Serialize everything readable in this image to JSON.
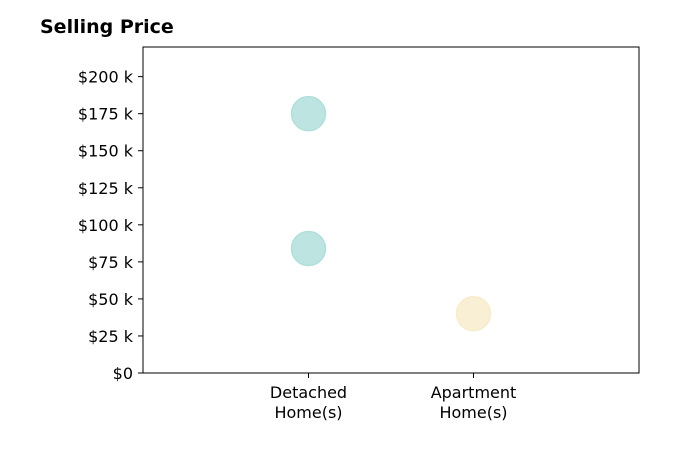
{
  "chart_data": {
    "type": "scatter",
    "title": "Selling Price",
    "xlabel": "",
    "ylabel": "",
    "categories": [
      [
        "Detached",
        "Home(s)"
      ],
      [
        "Apartment",
        "Home(s)"
      ]
    ],
    "ylim": [
      0,
      220000
    ],
    "yticks": [
      0,
      25000,
      50000,
      75000,
      100000,
      125000,
      150000,
      175000,
      200000
    ],
    "ytick_labels": [
      "$0",
      "$25 k",
      "$50 k",
      "$75 k",
      "$100 k",
      "$125 k",
      "$150 k",
      "$175 k",
      "$200 k"
    ],
    "grid": false,
    "points": [
      {
        "category": 0,
        "value": 175000,
        "color": "#b2dfdb"
      },
      {
        "category": 0,
        "value": 84000,
        "color": "#b2dfdb"
      },
      {
        "category": 1,
        "value": 40000,
        "color": "#f8eccd"
      }
    ],
    "colors": {
      "detached": "#b2dfdb",
      "apartment": "#f8eccd"
    }
  }
}
